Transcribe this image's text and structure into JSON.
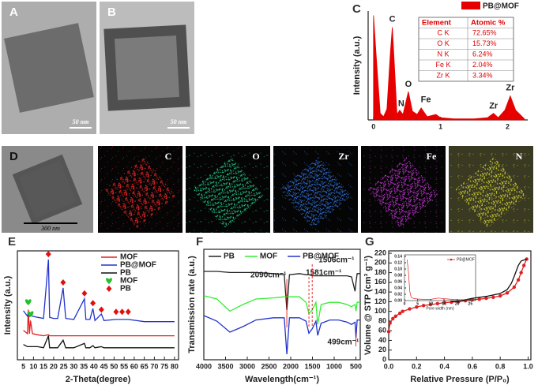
{
  "images": [
    {
      "panel": "A",
      "scale": "50 nm"
    },
    {
      "panel": "B",
      "scale": "50 nm"
    },
    {
      "panel": "D",
      "scale": "300 nm"
    }
  ],
  "maps": [
    {
      "element": "C",
      "color": "#e42222"
    },
    {
      "element": "O",
      "color": "#22c884"
    },
    {
      "element": "Zr",
      "color": "#2f6fd8"
    },
    {
      "element": "Fe",
      "color": "#c634d6"
    },
    {
      "element": "N",
      "color": "#cccc33"
    }
  ],
  "chart_data": [
    {
      "panel": "C",
      "type": "area",
      "y_label": "Intensity (a.u.)",
      "x": [
        0,
        0.05,
        0.1,
        0.15,
        0.2,
        0.25,
        0.28,
        0.31,
        0.35,
        0.39,
        0.44,
        0.52,
        0.58,
        0.65,
        0.71,
        0.8,
        0.93,
        1.0,
        1.2,
        1.5,
        1.7,
        1.79,
        1.86,
        1.96,
        2.04,
        2.12,
        2.25
      ],
      "series": [
        {
          "name": "PB@MOF",
          "color": "#e60000",
          "values": [
            96,
            50,
            6,
            3,
            10,
            60,
            85,
            52,
            5,
            9,
            5,
            26,
            8,
            5,
            11,
            3,
            5,
            2,
            1,
            1,
            2,
            6,
            2,
            9,
            22,
            9,
            1
          ]
        }
      ],
      "xlim": [
        -0.08,
        2.3
      ],
      "xticks": [
        0,
        1,
        2
      ],
      "ylim": [
        0,
        100
      ],
      "legend": "top-right",
      "annotations": [
        {
          "text": "C",
          "x": 0.28
        },
        {
          "text": "N",
          "x": 0.39
        },
        {
          "text": "O",
          "x": 0.52
        },
        {
          "text": "Fe",
          "x": 0.71
        },
        {
          "text": "Zr",
          "x": 1.79
        },
        {
          "text": "Zr",
          "x": 2.04
        }
      ],
      "table": {
        "columns": [
          "Element",
          "Atomic %"
        ],
        "rows": [
          [
            "C K",
            "72.65%"
          ],
          [
            "O K",
            "15.73%"
          ],
          [
            "N K",
            "6.24%"
          ],
          [
            "Fe K",
            "2.04%"
          ],
          [
            "Zr K",
            "3.34%"
          ]
        ]
      }
    },
    {
      "panel": "E",
      "type": "line",
      "x_label": "2-Theta(degree)",
      "y_label": "Intensity (a.u.)",
      "x": [
        5,
        7,
        7.4,
        8,
        8.5,
        9.5,
        12,
        15,
        17.4,
        18,
        20,
        22,
        24.7,
        26,
        30,
        35.3,
        36,
        38,
        39.5,
        40.5,
        43.7,
        45,
        51,
        54,
        57,
        65,
        80
      ],
      "series": [
        {
          "name": "MOF",
          "color": "#e02020",
          "values": [
            27,
            24,
            46,
            24,
            36,
            24,
            23,
            22,
            23,
            22,
            22,
            22,
            22,
            22,
            22,
            22,
            22,
            22,
            22,
            22,
            22,
            22,
            22,
            22,
            22,
            22,
            22
          ]
        },
        {
          "name": "PB@MOF",
          "color": "#2233cc",
          "values": [
            45,
            40,
            44,
            40,
            42,
            40,
            39,
            38,
            92,
            39,
            38,
            38,
            66,
            38,
            37,
            56,
            37,
            37,
            47,
            36,
            42,
            36,
            37,
            37,
            37,
            35,
            35
          ]
        },
        {
          "name": "PB",
          "color": "#111111",
          "values": [
            14,
            12,
            12,
            12,
            12,
            12,
            12,
            11,
            22,
            11,
            11,
            11,
            18,
            11,
            11,
            15,
            11,
            11,
            13,
            11,
            12,
            11,
            11,
            11,
            11,
            11,
            11
          ]
        }
      ],
      "markers": [
        {
          "name": "MOF",
          "shape": "heart",
          "color": "#22c02a",
          "x": [
            7.4,
            8.5
          ],
          "values": [
            53,
            42
          ]
        },
        {
          "name": "PB",
          "shape": "diamond",
          "color": "#e01010",
          "x": [
            17.4,
            24.7,
            35.3,
            39.5,
            43.7,
            51,
            54,
            57
          ],
          "values": [
            97,
            71,
            61,
            52,
            46,
            44,
            44,
            44
          ]
        }
      ],
      "xlim": [
        2,
        82
      ],
      "xticks": [
        5,
        10,
        15,
        20,
        25,
        30,
        35,
        40,
        45,
        50,
        55,
        60,
        65,
        70,
        75,
        80
      ],
      "ylim": [
        0,
        100
      ],
      "legend": "top-right"
    },
    {
      "panel": "F",
      "type": "line",
      "x_label": "Wavelength(cm⁻¹)",
      "y_label": "Transmission rate (a.u.)",
      "x": [
        4000,
        3700,
        3400,
        3100,
        2800,
        2400,
        2150,
        2090,
        2030,
        1800,
        1650,
        1581,
        1506,
        1420,
        1380,
        1300,
        1100,
        900,
        700,
        600,
        520,
        499,
        470,
        400
      ],
      "series": [
        {
          "name": "PB",
          "color": "#222222",
          "values": [
            80,
            80,
            79,
            79,
            79,
            78,
            77,
            45,
            77,
            78,
            77,
            77,
            76,
            76,
            76,
            76,
            76,
            76,
            76,
            75,
            62,
            70,
            78,
            78
          ]
        },
        {
          "name": "MOF",
          "color": "#33ee33",
          "values": [
            58,
            55,
            44,
            50,
            55,
            56,
            57,
            57,
            57,
            57,
            52,
            42,
            45,
            52,
            32,
            50,
            52,
            52,
            50,
            48,
            50,
            44,
            52,
            52
          ]
        },
        {
          "name": "PB@MOF",
          "color": "#2233cc",
          "values": [
            40,
            35,
            25,
            30,
            36,
            38,
            38,
            5,
            38,
            38,
            35,
            24,
            28,
            35,
            22,
            33,
            36,
            36,
            34,
            32,
            34,
            20,
            36,
            36
          ]
        }
      ],
      "annotations": [
        {
          "text": "2090cm⁻¹",
          "x": 2090
        },
        {
          "text": "1581cm⁻¹",
          "x": 1581
        },
        {
          "text": "1506cm⁻¹",
          "x": 1506
        },
        {
          "text": "499cm⁻¹",
          "x": 499
        }
      ],
      "xlim": [
        4000,
        400
      ],
      "xticks": [
        4000,
        3500,
        3000,
        2500,
        2000,
        1500,
        1000,
        500
      ],
      "ylim": [
        0,
        100
      ],
      "legend": "top"
    },
    {
      "panel": "G",
      "type": "line",
      "x_label": "Relative Pressure (P/P₀)",
      "y_label": "Volume @ STP (cm³ g⁻¹)",
      "series": [
        {
          "color": "#e02020",
          "marker": "circle",
          "x": [
            0.0,
            0.01,
            0.03,
            0.05,
            0.08,
            0.1,
            0.15,
            0.2,
            0.25,
            0.3,
            0.35,
            0.4,
            0.45,
            0.5,
            0.55,
            0.6,
            0.65,
            0.7,
            0.75,
            0.8,
            0.85,
            0.9,
            0.93,
            0.95,
            0.97,
            0.99
          ],
          "values": [
            58,
            76,
            85,
            90,
            96,
            100,
            105,
            109,
            112,
            114,
            116,
            118,
            119,
            120,
            122,
            124,
            125,
            127,
            129,
            132,
            138,
            150,
            165,
            180,
            195,
            208
          ]
        },
        {
          "color": "#111111",
          "x": [
            0.45,
            0.5,
            0.6,
            0.7,
            0.8,
            0.85,
            0.88,
            0.9,
            0.93,
            0.95,
            0.99
          ],
          "values": [
            120,
            121,
            127,
            131,
            137,
            145,
            158,
            172,
            195,
            204,
            208
          ]
        }
      ],
      "xlim": [
        0,
        1.02
      ],
      "xticks": [
        {
          "value": 0,
          "label": "0.0"
        },
        {
          "value": 0.2,
          "label": "0.2"
        },
        {
          "value": 0.4,
          "label": "0.4"
        },
        {
          "value": 0.6,
          "label": "0.6"
        },
        {
          "value": 0.8,
          "label": "0.8"
        },
        {
          "value": 1,
          "label": "1.0"
        }
      ],
      "ylim": [
        0,
        225
      ],
      "yticks": [
        0,
        20,
        40,
        60,
        80,
        100,
        120,
        140,
        160,
        180,
        200,
        220
      ],
      "inset": {
        "type": "line",
        "x_label": "Pore width (nm)",
        "series": [
          {
            "name": "PB@MOF",
            "color": "#e02020",
            "x": [
              1,
              1.5,
              2,
              2.5,
              3,
              4,
              5,
              7,
              10,
              13,
              15,
              18,
              20,
              25
            ],
            "values": [
              0.13,
              0.09,
              0.03,
              0.012,
              0.008,
              0.006,
              0.005,
              0.004,
              0.004,
              0.008,
              0.006,
              0.004,
              0.003,
              0.003
            ]
          }
        ],
        "xlim": [
          0,
          27
        ],
        "xticks": [
          0,
          5,
          10,
          15,
          20,
          25
        ],
        "ylim": [
          0,
          0.145
        ],
        "yticks": [
          {
            "value": 0,
            "label": "0.00"
          },
          {
            "value": 0.02,
            "label": "0.02"
          },
          {
            "value": 0.04,
            "label": "0.04"
          },
          {
            "value": 0.06,
            "label": "0.06"
          },
          {
            "value": 0.08,
            "label": "0.08"
          },
          {
            "value": 0.1,
            "label": "0.10"
          },
          {
            "value": 0.12,
            "label": "0.12"
          },
          {
            "value": 0.14,
            "label": "0.14"
          }
        ],
        "legend": "top-right"
      }
    }
  ]
}
